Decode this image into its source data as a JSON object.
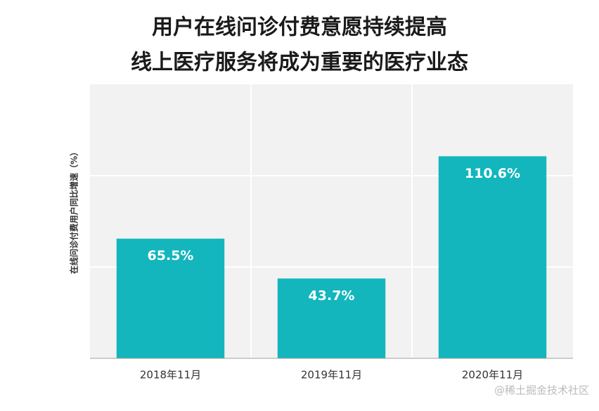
{
  "chart_data": {
    "type": "bar",
    "title": "用户在线问诊付费意愿持续提高",
    "subtitle": "线上医疗服务将成为重要的医疗业态",
    "y_label": "在线问诊付费用户同比增速（%）",
    "categories": [
      "2018年11月",
      "2019年11月",
      "2020年11月"
    ],
    "values": [
      65.5,
      43.7,
      110.6
    ],
    "value_labels": [
      "65.5%",
      "43.7%",
      "110.6%"
    ],
    "color": "#12b6bc",
    "ylim": [
      0,
      150
    ],
    "yticks": [
      0,
      50,
      100
    ],
    "grid": true,
    "watermark": "@稀土掘金技术社区"
  }
}
